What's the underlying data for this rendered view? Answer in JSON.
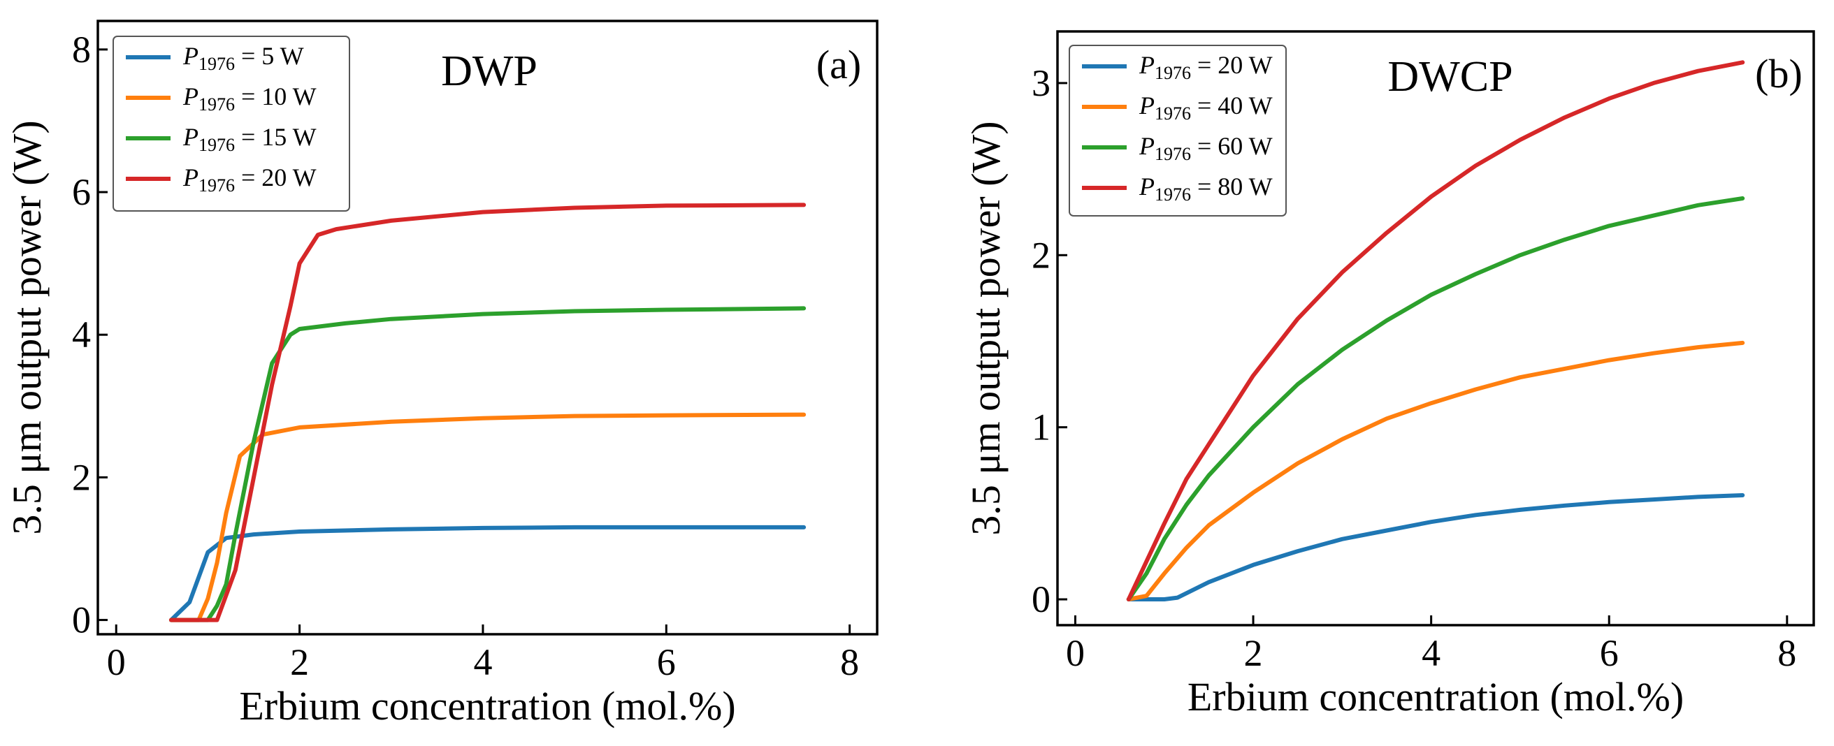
{
  "chart_data": [
    {
      "type": "line",
      "title": "DWP",
      "panel_label": "(a)",
      "xlabel": "Erbium concentration (mol.%)",
      "ylabel": "3.5 μm output power (W)",
      "xlim": [
        -0.2,
        8.3
      ],
      "ylim": [
        -0.2,
        8.4
      ],
      "xticks": [
        0,
        2,
        4,
        6,
        8
      ],
      "yticks": [
        0,
        2,
        4,
        6,
        8
      ],
      "grid": false,
      "legend_position": "top-left",
      "series": [
        {
          "name": "P",
          "sub": "1976",
          "value_text": " = 5 W",
          "color": "#1f77b4",
          "x": [
            0.6,
            0.8,
            1.0,
            1.2,
            1.5,
            2.0,
            3.0,
            4.0,
            5.0,
            6.0,
            7.5
          ],
          "y": [
            0.0,
            0.25,
            0.95,
            1.15,
            1.2,
            1.24,
            1.27,
            1.29,
            1.3,
            1.3,
            1.3
          ]
        },
        {
          "name": "P",
          "sub": "1976",
          "value_text": " = 10 W",
          "color": "#ff7f0e",
          "x": [
            0.6,
            0.9,
            1.0,
            1.1,
            1.2,
            1.35,
            1.6,
            2.0,
            3.0,
            4.0,
            5.0,
            6.0,
            7.5
          ],
          "y": [
            0.0,
            0.0,
            0.3,
            0.8,
            1.5,
            2.3,
            2.6,
            2.7,
            2.78,
            2.83,
            2.86,
            2.87,
            2.88
          ]
        },
        {
          "name": "P",
          "sub": "1976",
          "value_text": " = 15 W",
          "color": "#2ca02c",
          "x": [
            0.6,
            1.0,
            1.1,
            1.2,
            1.3,
            1.5,
            1.7,
            1.9,
            2.0,
            2.5,
            3.0,
            4.0,
            5.0,
            6.0,
            7.5
          ],
          "y": [
            0.0,
            0.0,
            0.2,
            0.5,
            1.2,
            2.5,
            3.6,
            4.0,
            4.08,
            4.16,
            4.22,
            4.29,
            4.33,
            4.35,
            4.37
          ]
        },
        {
          "name": "P",
          "sub": "1976",
          "value_text": " = 20 W",
          "color": "#d62728",
          "x": [
            0.6,
            1.1,
            1.3,
            1.5,
            1.7,
            1.9,
            2.0,
            2.2,
            2.4,
            3.0,
            4.0,
            5.0,
            6.0,
            7.5
          ],
          "y": [
            0.0,
            0.0,
            0.7,
            2.0,
            3.3,
            4.4,
            5.0,
            5.4,
            5.48,
            5.6,
            5.72,
            5.78,
            5.81,
            5.82
          ]
        }
      ]
    },
    {
      "type": "line",
      "title": "DWCP",
      "panel_label": "(b)",
      "xlabel": "Erbium concentration (mol.%)",
      "ylabel": "3.5 μm output power (W)",
      "xlim": [
        -0.2,
        8.3
      ],
      "ylim": [
        -0.15,
        3.3
      ],
      "xticks": [
        0,
        2,
        4,
        6,
        8
      ],
      "yticks": [
        0,
        1,
        2,
        3
      ],
      "grid": false,
      "legend_position": "top-left",
      "series": [
        {
          "name": "P",
          "sub": "1976",
          "value_text": " = 20 W",
          "color": "#1f77b4",
          "x": [
            0.6,
            0.8,
            1.0,
            1.15,
            1.5,
            2.0,
            2.5,
            3.0,
            3.5,
            4.0,
            4.5,
            5.0,
            5.5,
            6.0,
            6.5,
            7.0,
            7.5
          ],
          "y": [
            0.0,
            0.0,
            0.0,
            0.01,
            0.1,
            0.2,
            0.28,
            0.35,
            0.4,
            0.45,
            0.49,
            0.52,
            0.545,
            0.565,
            0.58,
            0.595,
            0.605
          ]
        },
        {
          "name": "P",
          "sub": "1976",
          "value_text": " = 40 W",
          "color": "#ff7f0e",
          "x": [
            0.6,
            0.8,
            1.0,
            1.25,
            1.5,
            2.0,
            2.5,
            3.0,
            3.5,
            4.0,
            4.5,
            5.0,
            5.5,
            6.0,
            6.5,
            7.0,
            7.5
          ],
          "y": [
            0.0,
            0.02,
            0.15,
            0.3,
            0.43,
            0.62,
            0.79,
            0.93,
            1.05,
            1.14,
            1.22,
            1.29,
            1.34,
            1.39,
            1.43,
            1.465,
            1.49
          ]
        },
        {
          "name": "P",
          "sub": "1976",
          "value_text": " = 60 W",
          "color": "#2ca02c",
          "x": [
            0.6,
            0.8,
            1.0,
            1.25,
            1.5,
            2.0,
            2.5,
            3.0,
            3.5,
            4.0,
            4.5,
            5.0,
            5.5,
            6.0,
            6.5,
            7.0,
            7.5
          ],
          "y": [
            0.0,
            0.15,
            0.35,
            0.55,
            0.72,
            1.0,
            1.25,
            1.45,
            1.62,
            1.77,
            1.89,
            2.0,
            2.09,
            2.17,
            2.23,
            2.29,
            2.33
          ]
        },
        {
          "name": "P",
          "sub": "1976",
          "value_text": " = 80 W",
          "color": "#d62728",
          "x": [
            0.6,
            0.8,
            1.0,
            1.25,
            1.5,
            2.0,
            2.5,
            3.0,
            3.5,
            4.0,
            4.5,
            5.0,
            5.5,
            6.0,
            6.5,
            7.0,
            7.5
          ],
          "y": [
            0.0,
            0.22,
            0.44,
            0.7,
            0.9,
            1.3,
            1.63,
            1.9,
            2.13,
            2.34,
            2.52,
            2.67,
            2.8,
            2.91,
            3.0,
            3.07,
            3.12
          ]
        }
      ]
    }
  ]
}
